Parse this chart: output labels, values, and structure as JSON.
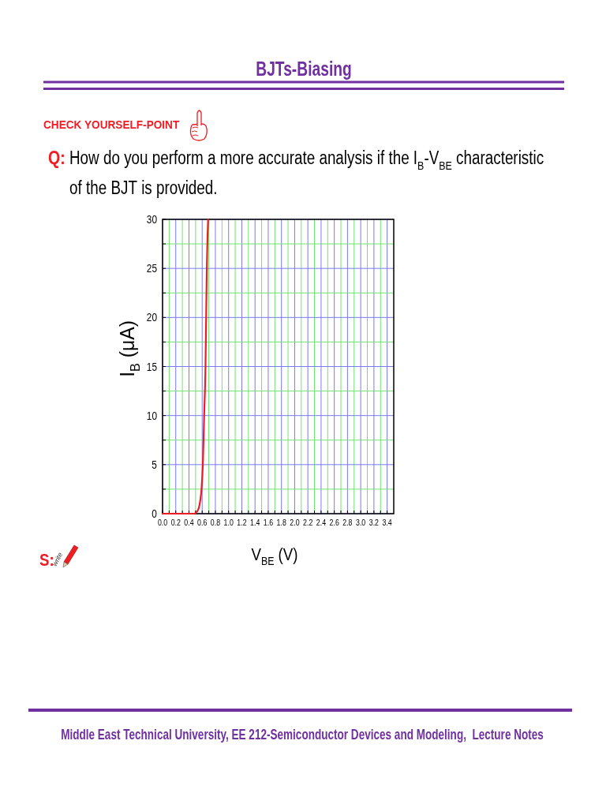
{
  "chart_data": {
    "type": "line",
    "title": "BJTs-Biasing",
    "subtitle": "How do you perform a more accurate analysis if the I$_{B}$-V$_{BE}$ characteristic of the BJT is provided.",
    "xlabel": "V$_{BE}$ (V)",
    "ylabel": "I$_{B}$ (μA)",
    "annotations": [
      "CHECK YOURSELF-POINT",
      "Q:",
      "S:",
      "write",
      "Middle East Technical University, EE 212-Semiconductor Devices and Modeling,  Lecture Notes"
    ],
    "x": [
      0,
      0.48,
      0.52,
      0.55,
      0.57,
      0.59,
      0.61,
      0.63,
      0.65,
      0.66,
      0.67,
      0.68,
      0.69
    ],
    "values": [
      0,
      0,
      0.2,
      0.6,
      1.3,
      2.5,
      5,
      10,
      15,
      20,
      25,
      28,
      30
    ],
    "color": "#ee1c24",
    "xlim": [
      0,
      3.5
    ],
    "ylim": [
      0,
      30
    ],
    "xticks": [
      {
        "value": 0,
        "label": "0.0"
      },
      {
        "value": 0.1,
        "label": null
      },
      0.2,
      {
        "value": 0.3,
        "label": null
      },
      0.4,
      {
        "value": 0.5,
        "label": null
      },
      0.6,
      {
        "value": 0.7,
        "label": null
      },
      0.8,
      {
        "value": 0.9,
        "label": null
      },
      {
        "value": 1,
        "label": "1.0"
      },
      {
        "value": 1.1,
        "label": null
      },
      1.2,
      {
        "value": 1.3,
        "label": null
      },
      1.4,
      {
        "value": 1.5,
        "label": null
      },
      1.6,
      {
        "value": 1.7,
        "label": null
      },
      1.8,
      {
        "value": 1.9,
        "label": null
      },
      {
        "value": 2,
        "label": "2.0"
      },
      {
        "value": 2.1,
        "label": null
      },
      2.2,
      {
        "value": 2.3,
        "label": null
      },
      2.4,
      {
        "value": 2.5,
        "label": null
      },
      2.6,
      {
        "value": 2.7,
        "label": null
      },
      2.8,
      {
        "value": 2.9,
        "label": null
      },
      {
        "value": 3,
        "label": "3.0"
      },
      {
        "value": 3.1,
        "label": null
      },
      3.2,
      {
        "value": 3.3,
        "label": null
      },
      3.4
    ],
    "yticks": [
      0,
      {
        "value": 2.5,
        "label": null
      },
      5,
      {
        "value": 7.5,
        "label": null
      },
      10,
      {
        "value": 12.5,
        "label": null
      },
      15,
      {
        "value": 17.5,
        "label": null
      },
      20,
      {
        "value": 22.5,
        "label": null
      },
      25,
      {
        "value": 27.5,
        "label": null
      },
      30
    ],
    "grid": true
  }
}
